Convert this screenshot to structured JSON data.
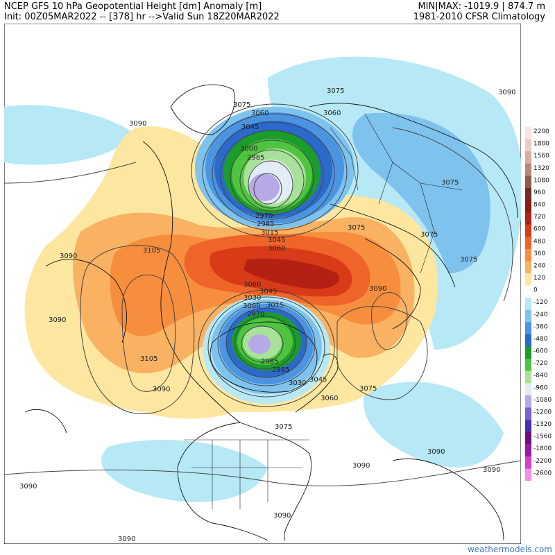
{
  "header": {
    "title": "NCEP GFS 10 hPa Geopotential Height [dm] Anomaly [m]",
    "init": "Init: 00Z05MAR2022 -- [378] hr -->Valid Sun 18Z20MAR2022",
    "minmax": "MIN|MAX: -1019.9 | 874.7 m",
    "climatology": "1981-2010 CFSR Climatology"
  },
  "colorbar": {
    "ticks": [
      {
        "label": "2200",
        "color": "#fbe3e3"
      },
      {
        "label": "1800",
        "color": "#eecbc6"
      },
      {
        "label": "1560",
        "color": "#d7aca3"
      },
      {
        "label": "1320",
        "color": "#b58a7c"
      },
      {
        "label": "1080",
        "color": "#8e5c4c"
      },
      {
        "label": "960",
        "color": "#6e2e24"
      },
      {
        "label": "840",
        "color": "#8c1b12"
      },
      {
        "label": "720",
        "color": "#b42014"
      },
      {
        "label": "600",
        "color": "#d93a17"
      },
      {
        "label": "480",
        "color": "#ef6428"
      },
      {
        "label": "360",
        "color": "#f68e3e"
      },
      {
        "label": "240",
        "color": "#f9b262"
      },
      {
        "label": "120",
        "color": "#fde7a0"
      },
      {
        "label": "0",
        "color": "#ffffff"
      },
      {
        "label": "-120",
        "color": "#b6e8f6"
      },
      {
        "label": "-240",
        "color": "#7ec2ee"
      },
      {
        "label": "-360",
        "color": "#4b94e2"
      },
      {
        "label": "-480",
        "color": "#2b6acb"
      },
      {
        "label": "-600",
        "color": "#1c9c2a"
      },
      {
        "label": "-720",
        "color": "#4fc53f"
      },
      {
        "label": "-840",
        "color": "#a8e29a"
      },
      {
        "label": "-960",
        "color": "#e2ecf4"
      },
      {
        "label": "-1080",
        "color": "#b7a9e6"
      },
      {
        "label": "-1200",
        "color": "#7c61d0"
      },
      {
        "label": "-1320",
        "color": "#4a2fb3"
      },
      {
        "label": "-1560",
        "color": "#6e0f7d"
      },
      {
        "label": "-1800",
        "color": "#9a1aa6"
      },
      {
        "label": "-2200",
        "color": "#d33fc8"
      },
      {
        "label": "-2600",
        "color": "#f28ee4"
      }
    ]
  },
  "contour_labels": [
    "3090",
    "3075",
    "3060",
    "3045",
    "3030",
    "3015",
    "3000",
    "2985",
    "2970",
    "3105"
  ],
  "colors": {
    "pos_light": "#fde7a0",
    "pos_2": "#f9b262",
    "pos_3": "#f68e3e",
    "pos_4": "#ef6428",
    "pos_5": "#d93a17",
    "pos_6": "#b42014",
    "neg_light": "#b6e8f6",
    "neg_2": "#7ec2ee",
    "neg_3": "#4b94e2",
    "neg_4": "#2b6acb",
    "neg_5": "#1c9c2a",
    "neg_6": "#4fc53f",
    "neg_7": "#a8e29a",
    "neg_8": "#e2ecf4",
    "neg_9": "#b7a9e6",
    "neg_10": "#7c61d0"
  },
  "credit": "weathermodels.com"
}
